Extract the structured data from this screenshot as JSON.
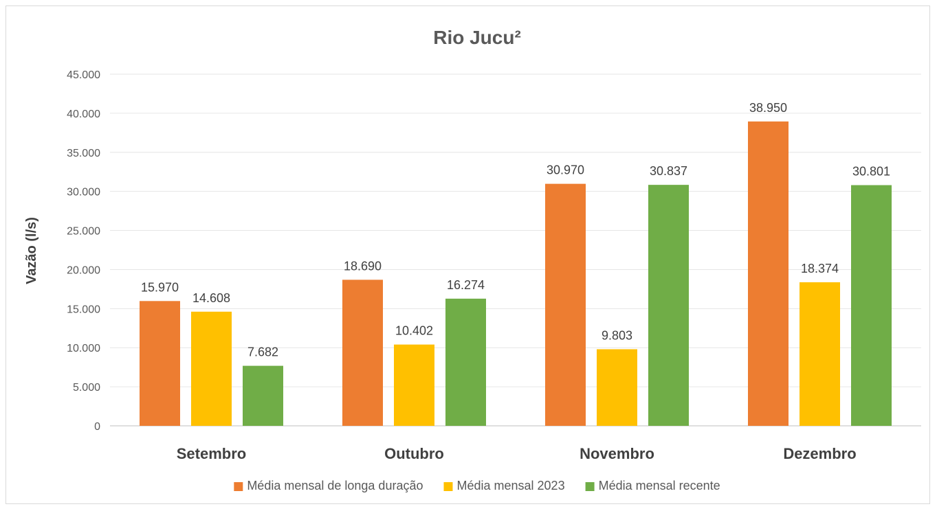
{
  "chart_data": {
    "type": "bar",
    "title": "Rio Jucu²",
    "xlabel": "",
    "ylabel": "Vazão (l/s)",
    "ylim": [
      0,
      45000
    ],
    "yticks": [
      0,
      5000,
      10000,
      15000,
      20000,
      25000,
      30000,
      35000,
      40000,
      45000
    ],
    "ytick_labels": [
      "0",
      "5.000",
      "10.000",
      "15.000",
      "20.000",
      "25.000",
      "30.000",
      "35.000",
      "40.000",
      "45.000"
    ],
    "grid": true,
    "legend_position": "bottom",
    "categories": [
      "Setembro",
      "Outubro",
      "Novembro",
      "Dezembro"
    ],
    "series": [
      {
        "name": "Média mensal de longa duração",
        "color": "#ED7D31",
        "values": [
          15970,
          18690,
          30970,
          38950
        ],
        "labels": [
          "15.970",
          "18.690",
          "30.970",
          "38.950"
        ]
      },
      {
        "name": "Média mensal 2023",
        "color": "#FFC000",
        "values": [
          14608,
          10402,
          9803,
          18374
        ],
        "labels": [
          "14.608",
          "10.402",
          "9.803",
          "18.374"
        ]
      },
      {
        "name": "Média mensal recente",
        "color": "#70AD47",
        "values": [
          7682,
          16274,
          30837,
          30801
        ],
        "labels": [
          "7.682",
          "16.274",
          "30.837",
          "30.801"
        ]
      }
    ]
  }
}
